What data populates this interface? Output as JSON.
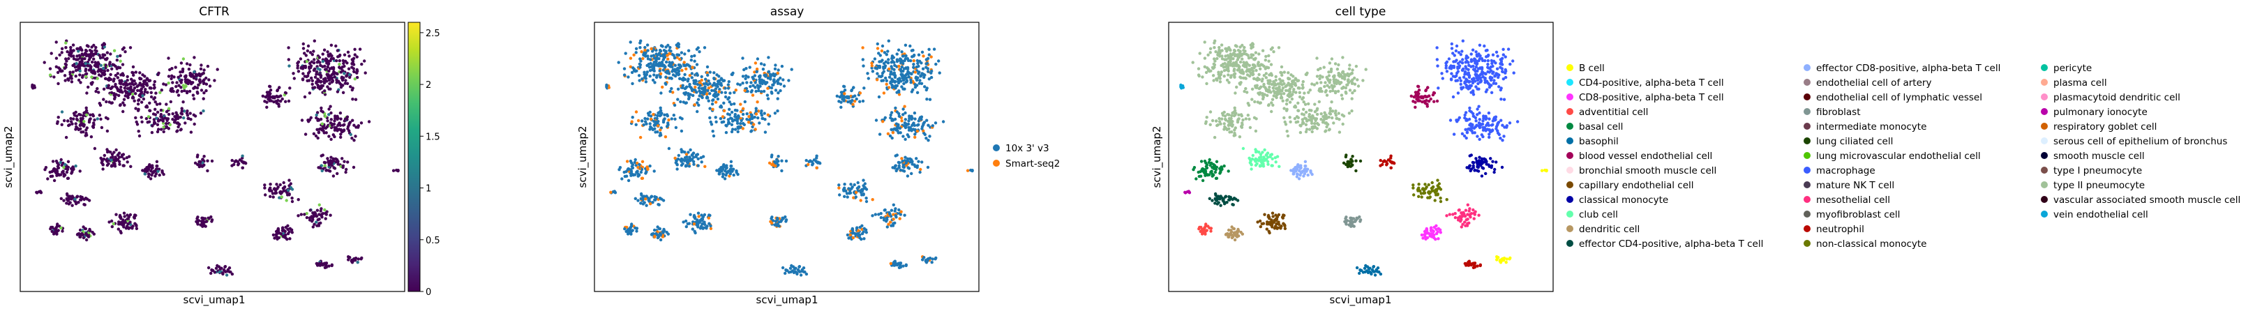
{
  "chart_data": [
    {
      "type": "scatter",
      "title": "CFTR",
      "xlabel": "scvi_umap1",
      "ylabel": "scvi_umap2",
      "color_scale": {
        "colormap": "viridis",
        "min": 0,
        "max": 2.6,
        "ticks": [
          {
            "value": 0,
            "label": "0"
          },
          {
            "value": 0.5,
            "label": "0.5"
          },
          {
            "value": 1,
            "label": "1"
          },
          {
            "value": 1.5,
            "label": "1.5"
          },
          {
            "value": 2,
            "label": "2"
          },
          {
            "value": 2.5,
            "label": "2.5"
          }
        ]
      },
      "grid": false
    },
    {
      "type": "scatter",
      "title": "assay",
      "xlabel": "scvi_umap1",
      "ylabel": "scvi_umap2",
      "legend_position": "right",
      "series": [
        {
          "name": "10x 3' v3",
          "color": "#1f77b4"
        },
        {
          "name": "Smart-seq2",
          "color": "#ff7f0e"
        }
      ],
      "grid": false
    },
    {
      "type": "scatter",
      "title": "cell type",
      "xlabel": "scvi_umap1",
      "ylabel": "scvi_umap2",
      "legend_position": "right",
      "legend_columns": 3,
      "series": [
        {
          "name": "B cell",
          "color": "#ffff00"
        },
        {
          "name": "CD4-positive, alpha-beta T cell",
          "color": "#1ce6ff"
        },
        {
          "name": "CD8-positive, alpha-beta T cell",
          "color": "#ff34ff"
        },
        {
          "name": "adventitial cell",
          "color": "#ff4a46"
        },
        {
          "name": "basal cell",
          "color": "#008941"
        },
        {
          "name": "basophil",
          "color": "#006fa6"
        },
        {
          "name": "blood vessel endothelial cell",
          "color": "#a30059"
        },
        {
          "name": "bronchial smooth muscle cell",
          "color": "#ffdbe5"
        },
        {
          "name": "capillary endothelial cell",
          "color": "#7a4900"
        },
        {
          "name": "classical monocyte",
          "color": "#0000a6"
        },
        {
          "name": "club cell",
          "color": "#63ffac"
        },
        {
          "name": "dendritic cell",
          "color": "#b79762"
        },
        {
          "name": "effector CD4-positive, alpha-beta T cell",
          "color": "#004d43"
        },
        {
          "name": "effector CD8-positive, alpha-beta T cell",
          "color": "#8fb0ff"
        },
        {
          "name": "endothelial cell of artery",
          "color": "#997d87"
        },
        {
          "name": "endothelial cell of lymphatic vessel",
          "color": "#5a0007"
        },
        {
          "name": "fibroblast",
          "color": "#809693"
        },
        {
          "name": "intermediate monocyte",
          "color": "#6a3a4c"
        },
        {
          "name": "lung ciliated cell",
          "color": "#1b4400"
        },
        {
          "name": "lung microvascular endothelial cell",
          "color": "#4fc601"
        },
        {
          "name": "macrophage",
          "color": "#3b5dff"
        },
        {
          "name": "mature NK T cell",
          "color": "#4a3b53"
        },
        {
          "name": "mesothelial cell",
          "color": "#ff2f80"
        },
        {
          "name": "myofibroblast cell",
          "color": "#61615a"
        },
        {
          "name": "neutrophil",
          "color": "#ba0900"
        },
        {
          "name": "non-classical monocyte",
          "color": "#6b7900"
        },
        {
          "name": "pericyte",
          "color": "#00c2a0"
        },
        {
          "name": "plasma cell",
          "color": "#ffaa92"
        },
        {
          "name": "plasmacytoid dendritic cell",
          "color": "#ff90c9"
        },
        {
          "name": "pulmonary ionocyte",
          "color": "#b903aa"
        },
        {
          "name": "respiratory goblet cell",
          "color": "#d16100"
        },
        {
          "name": "serous cell of epithelium of bronchus",
          "color": "#ddefff"
        },
        {
          "name": "smooth muscle cell",
          "color": "#000035"
        },
        {
          "name": "type I pneumocyte",
          "color": "#7b4f4b"
        },
        {
          "name": "type II pneumocyte",
          "color": "#a1c299"
        },
        {
          "name": "vascular associated smooth muscle cell",
          "color": "#300018"
        },
        {
          "name": "vein endothelial cell",
          "color": "#0aa6d8"
        }
      ],
      "grid": false
    }
  ]
}
